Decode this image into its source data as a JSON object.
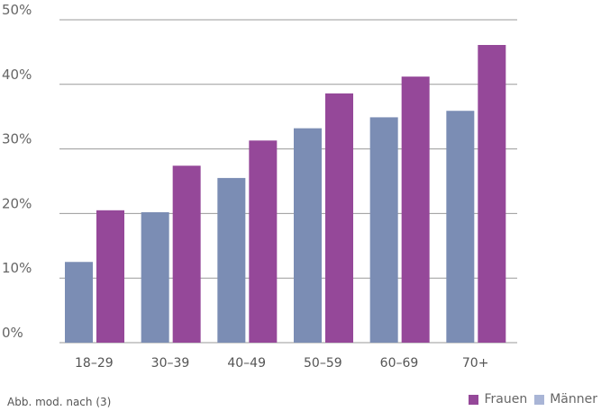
{
  "chart_data": {
    "type": "bar",
    "categories": [
      "18–29",
      "30–39",
      "40–49",
      "50–59",
      "60–69",
      "70+"
    ],
    "series": [
      {
        "name": "Männer",
        "color": "#7b8db4",
        "values": [
          12.5,
          20.2,
          25.5,
          33.2,
          34.9,
          35.9
        ]
      },
      {
        "name": "Frauen",
        "color": "#954899",
        "values": [
          20.5,
          27.4,
          31.3,
          38.6,
          41.2,
          46.1
        ]
      }
    ],
    "ylim": [
      0,
      50
    ],
    "yticks": [
      "0%",
      "10%",
      "20%",
      "30%",
      "40%",
      "50%"
    ],
    "ytick_values": [
      0,
      10,
      20,
      30,
      40,
      50
    ],
    "grid": true,
    "legend_placement": "bottom-right"
  },
  "source_note": "Abb. mod. nach (3)",
  "legend": [
    {
      "label": "Frauen",
      "color": "#954899"
    },
    {
      "label": "Männer",
      "color": "#a9b5d6"
    }
  ]
}
